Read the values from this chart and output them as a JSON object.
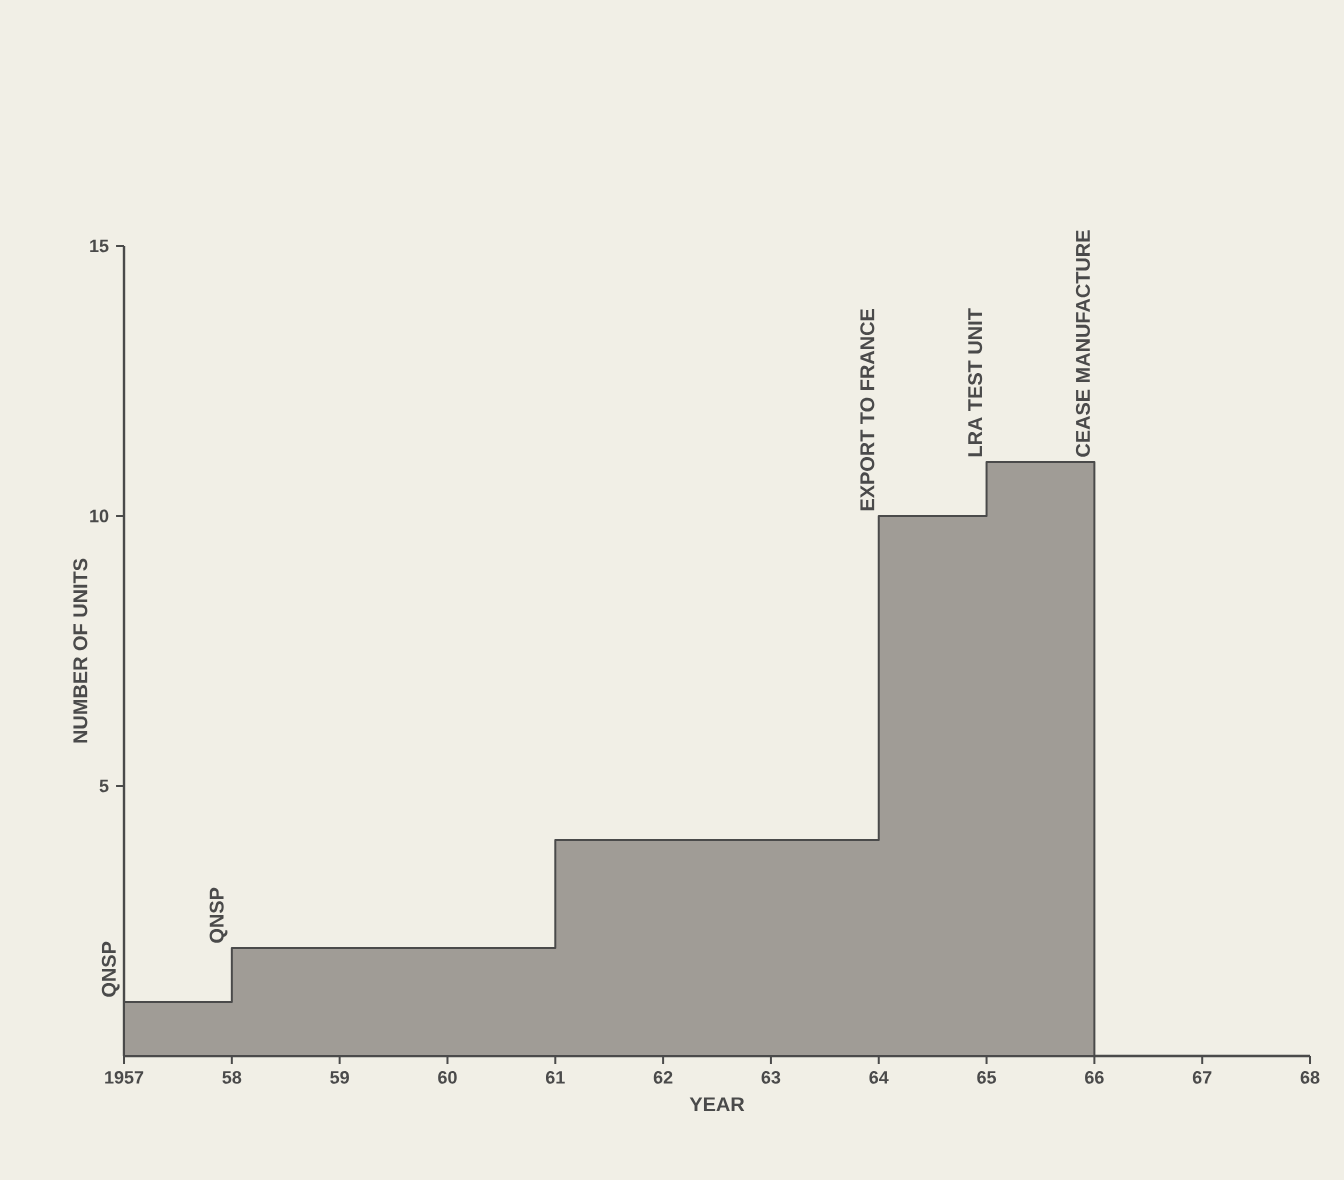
{
  "chart_data": {
    "type": "area",
    "xlabel": "YEAR",
    "ylabel": "NUMBER OF UNITS",
    "x": [
      1957,
      1958,
      1958,
      1961,
      1961,
      1964,
      1964,
      1965,
      1965,
      1966
    ],
    "series": [
      {
        "color": "#a09c96",
        "values": [
          1,
          1,
          2,
          2,
          4,
          4,
          10,
          10,
          11,
          11
        ]
      }
    ],
    "xlim": [
      1957,
      1968
    ],
    "ylim": [
      0,
      15
    ],
    "xticks": [
      1957,
      {
        "value": 1958,
        "label": "58"
      },
      {
        "value": 1959,
        "label": "59"
      },
      {
        "value": 1960,
        "label": "60"
      },
      {
        "value": 1961,
        "label": "61"
      },
      {
        "value": 1962,
        "label": "62"
      },
      {
        "value": 1963,
        "label": "63"
      },
      {
        "value": 1964,
        "label": "64"
      },
      {
        "value": 1965,
        "label": "65"
      },
      {
        "value": 1966,
        "label": "66"
      },
      {
        "value": 1967,
        "label": "67"
      },
      {
        "value": 1968,
        "label": "68"
      }
    ],
    "yticks": [
      5,
      10,
      15
    ],
    "annotations": [
      {
        "text": "QNSP",
        "x": 1957,
        "y": 1
      },
      {
        "text": "QNSP",
        "x": 1958,
        "y": 2
      },
      {
        "text": "EXPORT TO FRANCE",
        "x": 1964,
        "y": 10
      },
      {
        "text": "LRA TEST UNIT",
        "x": 1965,
        "y": 11
      },
      {
        "text": "CEASE MANUFACTURE",
        "x": 1966,
        "y": 11
      }
    ]
  }
}
